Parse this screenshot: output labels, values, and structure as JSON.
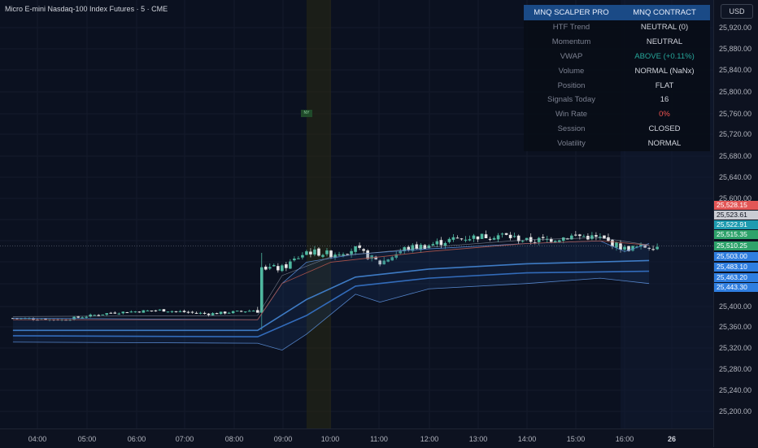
{
  "symbol_title": "Micro E-mini Nasdaq-100 Index Futures · 5 · CME",
  "currency": "USD",
  "marker": "NY",
  "price_ticks": [
    "25,920.00",
    "25,880.00",
    "25,840.00",
    "25,800.00",
    "25,760.00",
    "25,720.00",
    "25,680.00",
    "25,640.00",
    "25,600.00",
    "25,400.00",
    "25,360.00",
    "25,320.00",
    "25,280.00",
    "25,240.00",
    "25,200.00"
  ],
  "price_tags": [
    {
      "label": "25,528.15",
      "color": "#e25656"
    },
    {
      "label": "25,523.61",
      "color": "#c9ccd3"
    },
    {
      "label": "25,522.91",
      "color": "#1e9bb0"
    },
    {
      "label": "25,515.35",
      "color": "#2ea36b"
    },
    {
      "label": "25,510.25",
      "color": "#2ea36b"
    },
    {
      "label": "25,503.00",
      "color": "#2f7ee0"
    },
    {
      "label": "25,483.10",
      "color": "#2f7ee0"
    },
    {
      "label": "25,463.20",
      "color": "#2f7ee0"
    },
    {
      "label": "25,443.30",
      "color": "#2f7ee0"
    }
  ],
  "time_ticks": [
    {
      "label": "04:00",
      "bold": false
    },
    {
      "label": "05:00",
      "bold": false
    },
    {
      "label": "06:00",
      "bold": false
    },
    {
      "label": "07:00",
      "bold": false
    },
    {
      "label": "08:00",
      "bold": false
    },
    {
      "label": "09:00",
      "bold": false
    },
    {
      "label": "10:00",
      "bold": false
    },
    {
      "label": "11:00",
      "bold": false
    },
    {
      "label": "12:00",
      "bold": false
    },
    {
      "label": "13:00",
      "bold": false
    },
    {
      "label": "14:00",
      "bold": false
    },
    {
      "label": "15:00",
      "bold": false
    },
    {
      "label": "16:00",
      "bold": false
    },
    {
      "label": "26",
      "bold": true
    }
  ],
  "dashboard": {
    "title_left": "MNQ SCALPER PRO",
    "title_right": "MNQ CONTRACT",
    "rows": [
      {
        "label": "HTF Trend",
        "value": "NEUTRAL (0)",
        "color": "#d1d4dc"
      },
      {
        "label": "Momentum",
        "value": "NEUTRAL",
        "color": "#d1d4dc"
      },
      {
        "label": "VWAP",
        "value": "ABOVE (+0.11%)",
        "color": "#26a69a"
      },
      {
        "label": "Volume",
        "value": "NORMAL (NaNx)",
        "color": "#d1d4dc"
      },
      {
        "label": "Position",
        "value": "FLAT",
        "color": "#d1d4dc"
      },
      {
        "label": "Signals Today",
        "value": "16",
        "color": "#d1d4dc"
      },
      {
        "label": "Win Rate",
        "value": "0%",
        "color": "#ef5350"
      },
      {
        "label": "Session",
        "value": "CLOSED",
        "color": "#d1d4dc"
      },
      {
        "label": "Volatility",
        "value": "NORMAL",
        "color": "#d1d4dc"
      }
    ]
  },
  "chart_data": {
    "type": "candlestick",
    "y_axis_range": [
      25180,
      25940
    ],
    "x_axis_range": [
      "03:30",
      "16:40"
    ],
    "highlighted_sessions": [
      {
        "start": "09:30",
        "end": "10:00",
        "color": "#6b5a10"
      }
    ],
    "candles_summary": [
      {
        "time": "03:30",
        "close": 25375
      },
      {
        "time": "04:30",
        "close": 25372
      },
      {
        "time": "05:30",
        "close": 25385
      },
      {
        "time": "06:30",
        "close": 25390
      },
      {
        "time": "07:30",
        "close": 25383
      },
      {
        "time": "08:30",
        "close": 25390
      },
      {
        "time": "08:35",
        "close": 25470
      },
      {
        "time": "09:00",
        "close": 25468
      },
      {
        "time": "09:30",
        "close": 25500
      },
      {
        "time": "10:00",
        "close": 25495
      },
      {
        "time": "10:30",
        "close": 25505
      },
      {
        "time": "11:00",
        "close": 25478
      },
      {
        "time": "11:30",
        "close": 25505
      },
      {
        "time": "12:00",
        "close": 25512
      },
      {
        "time": "12:30",
        "close": 25523
      },
      {
        "time": "13:00",
        "close": 25528
      },
      {
        "time": "13:30",
        "close": 25531
      },
      {
        "time": "14:00",
        "close": 25520
      },
      {
        "time": "14:30",
        "close": 25523
      },
      {
        "time": "15:00",
        "close": 25530
      },
      {
        "time": "15:30",
        "close": 25525
      },
      {
        "time": "16:00",
        "close": 25505
      },
      {
        "time": "16:30",
        "close": 25510
      }
    ],
    "bands": [
      {
        "name": "",
        "values_at": [
          [
            "03:30",
            25352
          ],
          [
            "08:30",
            25352
          ],
          [
            "09:30",
            25410
          ],
          [
            "10:30",
            25452
          ],
          [
            "12:00",
            25467
          ],
          [
            "14:00",
            25477
          ],
          [
            "16:30",
            25483
          ]
        ],
        "color": "#4a90e2"
      },
      {
        "name": "",
        "values_at": [
          [
            "03:30",
            25342
          ],
          [
            "08:30",
            25340
          ],
          [
            "09:30",
            25380
          ],
          [
            "10:30",
            25435
          ],
          [
            "12:00",
            25450
          ],
          [
            "14:00",
            25460
          ],
          [
            "16:30",
            25463
          ]
        ],
        "color": "#3a7bd5"
      }
    ],
    "current_price": 25510.25
  }
}
